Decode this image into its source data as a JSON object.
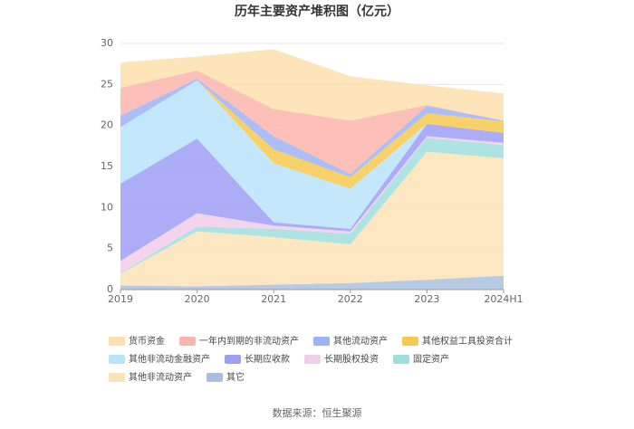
{
  "chart_data": {
    "type": "stacked_area",
    "title": "历年主要资产堆积图（亿元）",
    "categories": [
      "2019",
      "2020",
      "2021",
      "2022",
      "2023",
      "2024H1"
    ],
    "ylim": [
      0,
      30
    ],
    "yticks": [
      0,
      5,
      10,
      15,
      20,
      25,
      30
    ],
    "grid": true,
    "series": [
      {
        "name": "货币资金",
        "color": "#fde0ad",
        "values": [
          3.1,
          1.7,
          7.3,
          5.4,
          2.4,
          3.3
        ]
      },
      {
        "name": "一年内到期的非流动资产",
        "color": "#fbb5ad",
        "values": [
          3.4,
          1.0,
          3.3,
          6.5,
          0.1,
          0
        ]
      },
      {
        "name": "其他流动资产",
        "color": "#9db3f5",
        "values": [
          1.4,
          0.2,
          1.6,
          0.4,
          0.9,
          0.1
        ]
      },
      {
        "name": "其他权益工具投资合计",
        "color": "#f8c94f",
        "values": [
          0,
          0,
          1.7,
          1.4,
          1.3,
          1.4
        ]
      },
      {
        "name": "其他非流动金融资产",
        "color": "#b8e4fb",
        "values": [
          6.9,
          7.1,
          7.2,
          4.9,
          0,
          0
        ]
      },
      {
        "name": "长期应收款",
        "color": "#9f9ef5",
        "values": [
          9.4,
          9.1,
          0.4,
          0.3,
          1.5,
          1.2
        ]
      },
      {
        "name": "长期股权投资",
        "color": "#f2cdea",
        "values": [
          1.5,
          1.6,
          0.4,
          0.3,
          0.2,
          0.3
        ]
      },
      {
        "name": "固定资产",
        "color": "#9fdede",
        "values": [
          0.1,
          0.6,
          1.0,
          1.3,
          1.7,
          1.6
        ]
      },
      {
        "name": "其他非流动资产",
        "color": "#fde3b6",
        "values": [
          1.4,
          6.7,
          5.8,
          4.7,
          15.6,
          14.3
        ]
      },
      {
        "name": "其它",
        "color": "#a9bfe0",
        "values": [
          0.5,
          0.4,
          0.6,
          0.8,
          1.2,
          1.7
        ]
      }
    ],
    "source": "数据来源：恒生聚源"
  }
}
